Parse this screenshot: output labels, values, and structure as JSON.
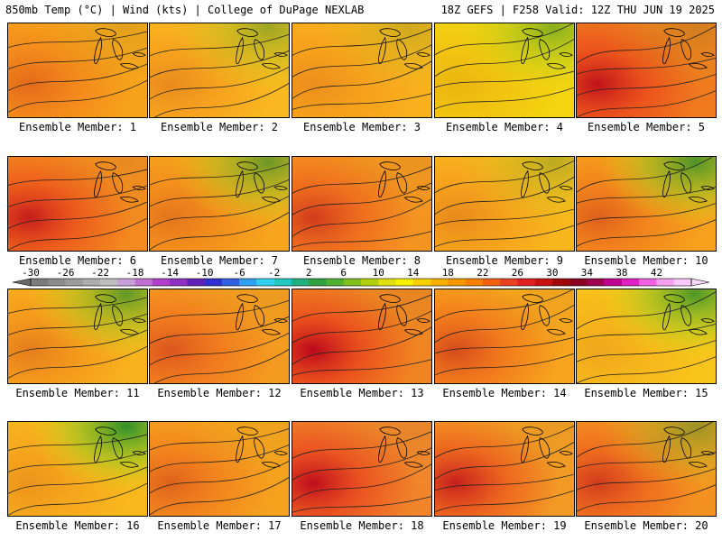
{
  "header": {
    "left": "850mb Temp (°C) | Wind (kts) | College of DuPage NEXLAB",
    "right": "18Z GEFS | F258 Valid: 12Z THU JUN 19 2025"
  },
  "panels": [
    {
      "label": "Ensemble Member: 1",
      "base": "#f7a21b",
      "hot": 0.35,
      "cool": 0.1
    },
    {
      "label": "Ensemble Member: 2",
      "base": "#f9b81f",
      "hot": 0.25,
      "cool": 0.45
    },
    {
      "label": "Ensemble Member: 3",
      "base": "#f8b01c",
      "hot": 0.2,
      "cool": 0.2
    },
    {
      "label": "Ensemble Member: 4",
      "base": "#f3d40f",
      "hot": 0.15,
      "cool": 0.55
    },
    {
      "label": "Ensemble Member: 5",
      "base": "#f07a1e",
      "hot": 0.85,
      "cool": 0.15
    },
    {
      "label": "Ensemble Member: 6",
      "base": "#f38a1f",
      "hot": 0.8,
      "cool": 0.05
    },
    {
      "label": "Ensemble Member: 7",
      "base": "#f6a51d",
      "hot": 0.3,
      "cool": 0.7
    },
    {
      "label": "Ensemble Member: 8",
      "base": "#f49420",
      "hot": 0.6,
      "cool": 0.05
    },
    {
      "label": "Ensemble Member: 9",
      "base": "#f8b61d",
      "hot": 0.25,
      "cool": 0.3
    },
    {
      "label": "Ensemble Member: 10",
      "base": "#f6a01d",
      "hot": 0.4,
      "cool": 0.85
    },
    {
      "label": "Ensemble Member: 11",
      "base": "#f8b21d",
      "hot": 0.3,
      "cool": 0.75
    },
    {
      "label": "Ensemble Member: 12",
      "base": "#f59a20",
      "hot": 0.45,
      "cool": 0.05
    },
    {
      "label": "Ensemble Member: 13",
      "base": "#f08422",
      "hot": 0.95,
      "cool": 0.05
    },
    {
      "label": "Ensemble Member: 14",
      "base": "#f7a31d",
      "hot": 0.55,
      "cool": 0.05
    },
    {
      "label": "Ensemble Member: 15",
      "base": "#f8c41b",
      "hot": 0.15,
      "cool": 0.85
    },
    {
      "label": "Ensemble Member: 16",
      "base": "#f8b81d",
      "hot": 0.2,
      "cool": 1.0
    },
    {
      "label": "Ensemble Member: 17",
      "base": "#f6a21e",
      "hot": 0.4,
      "cool": 0.05
    },
    {
      "label": "Ensemble Member: 18",
      "base": "#f0842a",
      "hot": 0.9,
      "cool": 0.05
    },
    {
      "label": "Ensemble Member: 19",
      "base": "#f39a24",
      "hot": 0.8,
      "cool": 0.05
    },
    {
      "label": "Ensemble Member: 20",
      "base": "#f49221",
      "hot": 0.6,
      "cool": 0.45
    }
  ],
  "colorbar": {
    "tick_labels": [
      "-30",
      "-26",
      "-22",
      "-18",
      "-14",
      "-10",
      "-6",
      "-2",
      "2",
      "6",
      "10",
      "14",
      "18",
      "22",
      "26",
      "30",
      "34",
      "38",
      "42"
    ],
    "colors": [
      "#7c7c7c",
      "#8c8c8c",
      "#9c9c9c",
      "#adadad",
      "#bfbfbf",
      "#c8a0d8",
      "#c070d0",
      "#b040c8",
      "#9030c0",
      "#6020b8",
      "#3030d0",
      "#3060e0",
      "#30a0f0",
      "#30d0f0",
      "#20c8c0",
      "#20b080",
      "#30a040",
      "#50b030",
      "#80c020",
      "#b0d010",
      "#e0e010",
      "#f8f000",
      "#f8d000",
      "#f8b000",
      "#f89800",
      "#f88000",
      "#f06010",
      "#e84020",
      "#e02020",
      "#c81010",
      "#a00808",
      "#880020",
      "#a00050",
      "#c00090",
      "#e020c0",
      "#f060e0",
      "#f8a0f0",
      "#f8c8f8"
    ]
  }
}
